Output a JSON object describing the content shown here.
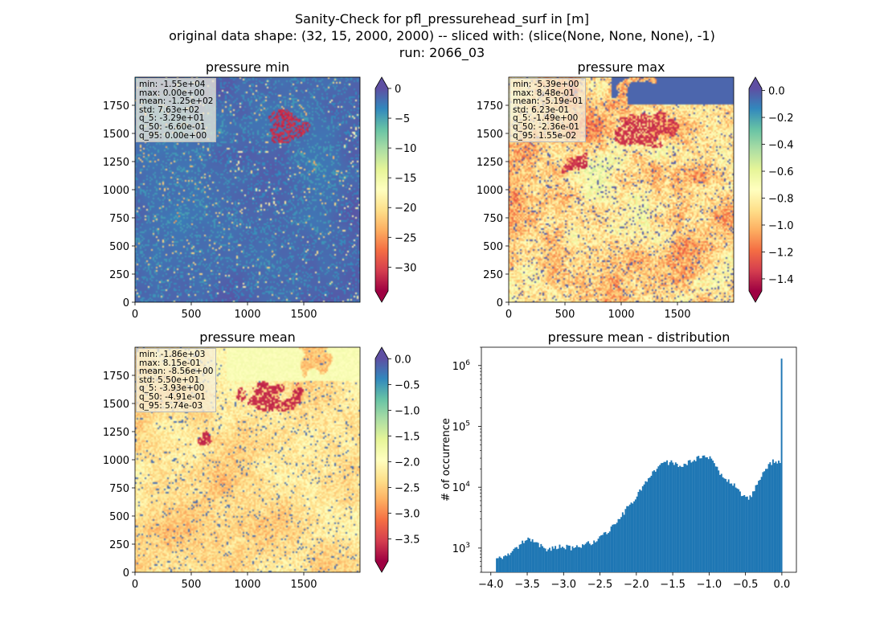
{
  "figure": {
    "title_lines": [
      "Sanity-Check for pfl_pressurehead_surf in [m]",
      "original data shape: (32, 15, 2000, 2000) -- sliced with: (slice(None, None, None), -1)",
      "run: 2066_03"
    ]
  },
  "colormap": "Spectral",
  "chart_data": [
    {
      "type": "heatmap",
      "title": "pressure min",
      "xlim": [
        0,
        2000
      ],
      "ylim": [
        0,
        2000
      ],
      "xticks": [
        0,
        500,
        1000,
        1500
      ],
      "yticks": [
        0,
        250,
        500,
        750,
        1000,
        1250,
        1500,
        1750
      ],
      "colorbar": {
        "range": [
          -34,
          0
        ],
        "ticks": [
          0,
          -5,
          -10,
          -15,
          -20,
          -25,
          -30
        ],
        "ticklabels": [
          "0",
          "−5",
          "−10",
          "−15",
          "−20",
          "−25",
          "−30"
        ],
        "extend": "both"
      },
      "stats": [
        "min: -1.55e+04",
        "max: 0.00e+00",
        "mean: -1.25e+02",
        "std: 7.63e+02",
        "q_5: -3.29e+01",
        "q_50: -6.60e-01",
        "q_95: 0.00e+00"
      ],
      "field_style": "mostly-max"
    },
    {
      "type": "heatmap",
      "title": "pressure max",
      "xlim": [
        0,
        2000
      ],
      "ylim": [
        0,
        2000
      ],
      "xticks": [
        0,
        500,
        1000,
        1500
      ],
      "yticks": [
        0,
        250,
        500,
        750,
        1000,
        1250,
        1500,
        1750
      ],
      "colorbar": {
        "range": [
          -1.49,
          0.0155
        ],
        "ticks": [
          0.0,
          -0.2,
          -0.4,
          -0.6,
          -0.8,
          -1.0,
          -1.2,
          -1.4
        ],
        "ticklabels": [
          "0.0",
          "−0.2",
          "−0.4",
          "−0.6",
          "−0.8",
          "−1.0",
          "−1.2",
          "−1.4"
        ],
        "extend": "both"
      },
      "stats": [
        "min: -5.39e+00",
        "max: 8.48e-01",
        "mean: -5.19e-01",
        "std: 6.23e-01",
        "q_5: -1.49e+00",
        "q_50: -2.36e-01",
        "q_95: 1.55e-02"
      ],
      "field_style": "mixed"
    },
    {
      "type": "heatmap",
      "title": "pressure mean",
      "xlim": [
        0,
        2000
      ],
      "ylim": [
        0,
        2000
      ],
      "xticks": [
        0,
        500,
        1000,
        1500
      ],
      "yticks": [
        0,
        250,
        500,
        750,
        1000,
        1250,
        1500,
        1750
      ],
      "colorbar": {
        "range": [
          -3.93,
          0.0057
        ],
        "ticks": [
          0.0,
          -0.5,
          -1.0,
          -1.5,
          -2.0,
          -2.5,
          -3.0,
          -3.5
        ],
        "ticklabels": [
          "0.0",
          "−0.5",
          "−1.0",
          "−1.5",
          "−2.0",
          "−2.5",
          "−3.0",
          "−3.5"
        ],
        "extend": "both"
      },
      "stats": [
        "min: -1.86e+03",
        "max: 8.15e-01",
        "mean: -8.56e+00",
        "std: 5.50e+01",
        "q_5: -3.93e+00",
        "q_50: -4.91e-01",
        "q_95: 5.74e-03"
      ],
      "field_style": "mixed-mean"
    },
    {
      "type": "bar",
      "subtype": "histogram",
      "title": "pressure mean - distribution",
      "ylabel": "# of occurrence",
      "xlabel": "",
      "yscale": "log",
      "xlim": [
        -4.13,
        0.2
      ],
      "ylim": [
        400,
        2000000
      ],
      "xticks": [
        -4.0,
        -3.5,
        -3.0,
        -2.5,
        -2.0,
        -1.5,
        -1.0,
        -0.5,
        0.0
      ],
      "xticklabels": [
        "−4.0",
        "−3.5",
        "−3.0",
        "−2.5",
        "−2.0",
        "−1.5",
        "−1.0",
        "−0.5",
        "0.0"
      ],
      "yticks": [
        1000,
        10000,
        100000,
        1000000
      ],
      "color": "#1f77b4",
      "bins": {
        "start": -3.93,
        "end": 0.0057,
        "count": 200
      },
      "profile": {
        "x": [
          -3.93,
          -3.85,
          -3.7,
          -3.55,
          -3.5,
          -3.4,
          -3.3,
          -3.2,
          -3.1,
          -3.0,
          -2.9,
          -2.8,
          -2.7,
          -2.6,
          -2.5,
          -2.4,
          -2.3,
          -2.2,
          -2.1,
          -2.0,
          -1.9,
          -1.8,
          -1.7,
          -1.6,
          -1.5,
          -1.4,
          -1.3,
          -1.2,
          -1.1,
          -1.0,
          -0.95,
          -0.9,
          -0.85,
          -0.8,
          -0.7,
          -0.6,
          -0.5,
          -0.45,
          -0.4,
          -0.3,
          -0.2,
          -0.1,
          -0.05,
          0.0
        ],
        "count": [
          620,
          700,
          850,
          1280,
          1400,
          1250,
          1050,
          950,
          1000,
          1080,
          1000,
          1050,
          1150,
          1250,
          1500,
          1800,
          2600,
          3500,
          5000,
          7200,
          11000,
          16000,
          21000,
          25000,
          26000,
          23000,
          25000,
          29000,
          31000,
          31000,
          28000,
          21000,
          16000,
          15000,
          12000,
          9000,
          6500,
          6300,
          8000,
          14000,
          21000,
          28000,
          27000,
          28000
        ]
      },
      "spike": {
        "x": 0.0,
        "count": 1300000
      }
    }
  ]
}
